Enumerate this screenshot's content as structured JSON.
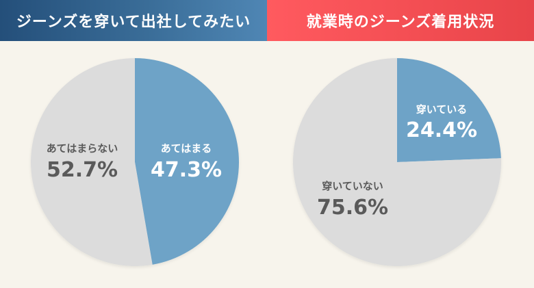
{
  "chart_data": [
    {
      "type": "pie",
      "title": "ジーンズを穿いて出社してみたい",
      "slices": [
        {
          "label": "あてはまる",
          "value": 47.3,
          "display": "47.3%",
          "color": "#6ea3c7",
          "text_color": "#ffffff"
        },
        {
          "label": "あてはまらない",
          "value": 52.7,
          "display": "52.7%",
          "color": "#dcdcdc",
          "text_color": "#5a5a5a"
        }
      ]
    },
    {
      "type": "pie",
      "title": "就業時のジーンズ着用状況",
      "slices": [
        {
          "label": "穿いている",
          "value": 24.4,
          "display": "24.4%",
          "color": "#6ea3c7",
          "text_color": "#ffffff"
        },
        {
          "label": "穿いていない",
          "value": 75.6,
          "display": "75.6%",
          "color": "#dcdcdc",
          "text_color": "#5a5a5a"
        }
      ]
    }
  ]
}
